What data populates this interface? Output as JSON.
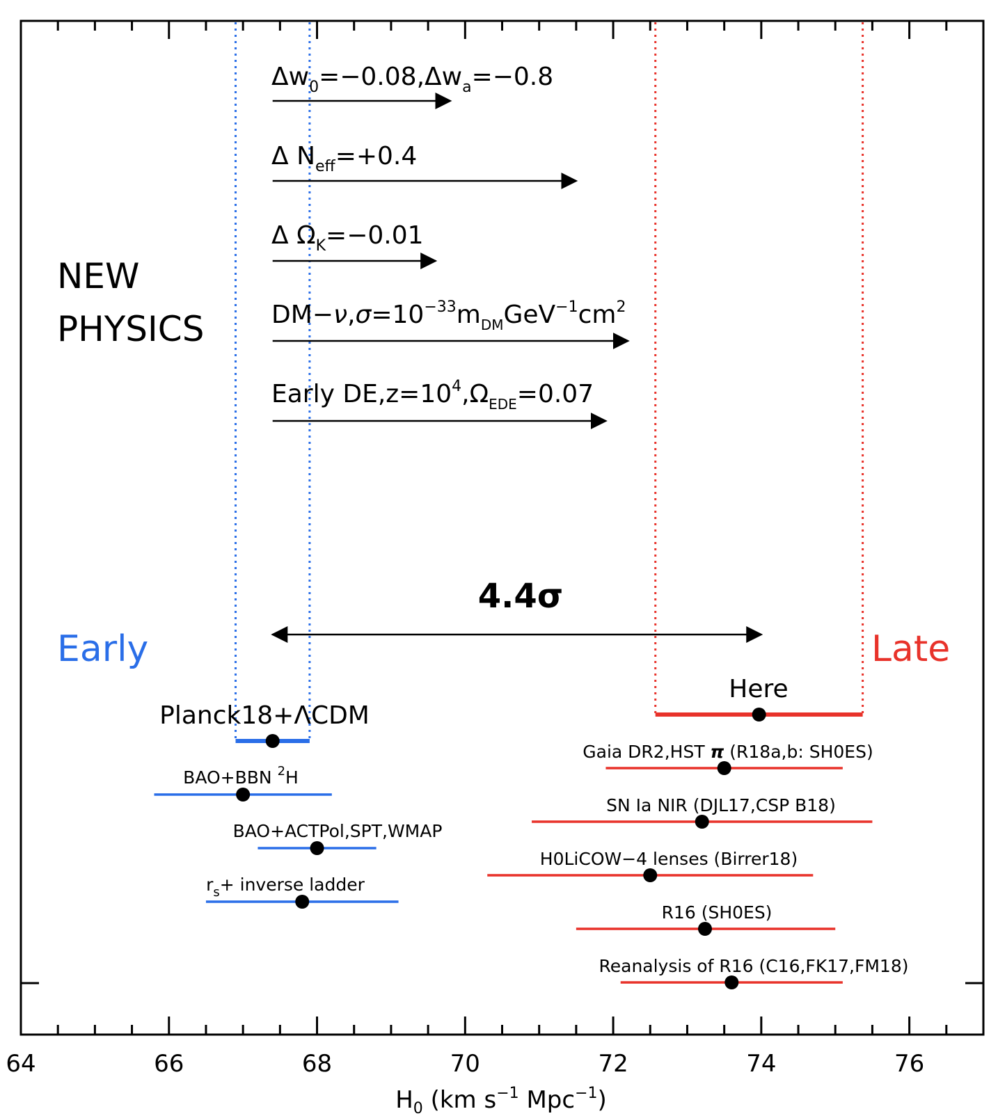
{
  "chart_data": {
    "type": "scatter",
    "xlabel": "H",
    "xlabel_sub": "0",
    "xlabel_units_pre": " (km s",
    "xlabel_units_exp1": "−1",
    "xlabel_units_mid": " Mpc",
    "xlabel_units_exp2": "−1",
    "xlabel_units_post": ")",
    "xlim": [
      64,
      77
    ],
    "x_ticks": [
      64,
      66,
      68,
      70,
      72,
      74,
      76
    ],
    "x_tick_labels": [
      "64",
      "66",
      "68",
      "70",
      "72",
      "74",
      "76"
    ],
    "grid": false,
    "colors": {
      "early": "#2a6ee8",
      "late": "#e8322a",
      "ink": "#000000"
    },
    "side_labels": {
      "early": "Early",
      "late": "Late"
    },
    "tension_label": "4.4σ",
    "tension_range": [
      67.4,
      74.0
    ],
    "new_physics_title": [
      "NEW",
      "PHYSICS"
    ],
    "new_physics": [
      {
        "label": "Δw₀=−0.08,Δwₐ=−0.8",
        "from": 67.4,
        "to": 69.8
      },
      {
        "label": "Δ N_eff=+0.4",
        "from": 67.4,
        "to": 71.5
      },
      {
        "label": "Δ Ω_K=−0.01",
        "from": 67.4,
        "to": 69.6
      },
      {
        "label": "DM−ν,σ=10^−33 m_DM GeV^−1 cm^2",
        "from": 67.4,
        "to": 72.2
      },
      {
        "label": "Early DE,z=10^4,Ω_EDE=0.07",
        "from": 67.4,
        "to": 71.9
      }
    ],
    "dotted_bands": [
      {
        "group": "early",
        "x": [
          66.9,
          67.9
        ]
      },
      {
        "group": "late",
        "x": [
          72.57,
          75.37
        ]
      }
    ],
    "early_series": [
      {
        "name": "Planck18+ΛCDM",
        "value": 67.4,
        "err": [
          66.9,
          67.9
        ]
      },
      {
        "name": "BAO+BBN ²H",
        "value": 67.0,
        "err": [
          65.8,
          68.2
        ]
      },
      {
        "name": "BAO+ACTPol,SPT,WMAP",
        "value": 68.0,
        "err": [
          67.2,
          68.8
        ]
      },
      {
        "name": "r_s+ inverse ladder",
        "value": 67.8,
        "err": [
          66.5,
          69.1
        ]
      }
    ],
    "late_series": [
      {
        "name": "Here",
        "value": 73.97,
        "err": [
          72.57,
          75.37
        ]
      },
      {
        "name": "Gaia DR2,HST π (R18a,b: SH0ES)",
        "value": 73.5,
        "err": [
          71.9,
          75.1
        ]
      },
      {
        "name": "SN Ia NIR (DJL17,CSP B18)",
        "value": 73.2,
        "err": [
          70.9,
          75.5
        ]
      },
      {
        "name": "H0LiCOW−4 lenses (Birrer18)",
        "value": 72.5,
        "err": [
          70.3,
          74.7
        ]
      },
      {
        "name": "R16 (SH0ES)",
        "value": 73.24,
        "err": [
          71.5,
          75.0
        ]
      },
      {
        "name": "Reanalysis of R16 (C16,FK17,FM18)",
        "value": 73.6,
        "err": [
          72.1,
          75.1
        ]
      }
    ]
  }
}
